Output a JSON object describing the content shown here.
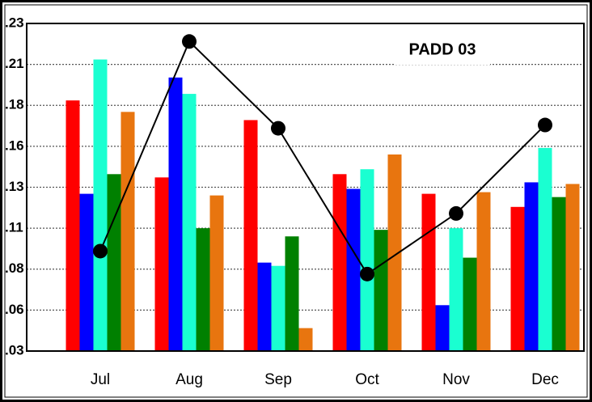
{
  "chart_data": {
    "type": "bar",
    "annotation": "PADD 03",
    "categories": [
      "Jul",
      "Aug",
      "Sep",
      "Oct",
      "Nov",
      "Dec"
    ],
    "series": [
      {
        "color": "#ff0000",
        "values": [
          0.183,
          0.136,
          0.171,
          0.138,
          0.126,
          0.118
        ]
      },
      {
        "color": "#0000ff",
        "values": [
          0.126,
          0.197,
          0.084,
          0.129,
          0.058,
          0.133
        ]
      },
      {
        "color": "#1affd1",
        "values": [
          0.208,
          0.187,
          0.082,
          0.141,
          0.105,
          0.154
        ]
      },
      {
        "color": "#008000",
        "values": [
          0.138,
          0.105,
          0.1,
          0.104,
          0.087,
          0.124
        ]
      },
      {
        "color": "#e8750f",
        "values": [
          0.176,
          0.125,
          0.044,
          0.15,
          0.127,
          0.132
        ]
      },
      {
        "type": "line",
        "color": "#000000",
        "values": [
          0.091,
          0.219,
          0.166,
          0.077,
          0.114,
          0.168
        ]
      }
    ],
    "ylim": [
      0.03,
      0.23
    ],
    "yticks": [
      {
        "value": 0.03,
        "label": ".03"
      },
      {
        "value": 0.055,
        "label": ".06"
      },
      {
        "value": 0.08,
        "label": ".08"
      },
      {
        "value": 0.105,
        "label": ".11"
      },
      {
        "value": 0.13,
        "label": ".13"
      },
      {
        "value": 0.155,
        "label": ".16"
      },
      {
        "value": 0.18,
        "label": ".18"
      },
      {
        "value": 0.205,
        "label": ".21"
      },
      {
        "value": 0.23,
        "label": ".23"
      }
    ],
    "grid": true
  }
}
